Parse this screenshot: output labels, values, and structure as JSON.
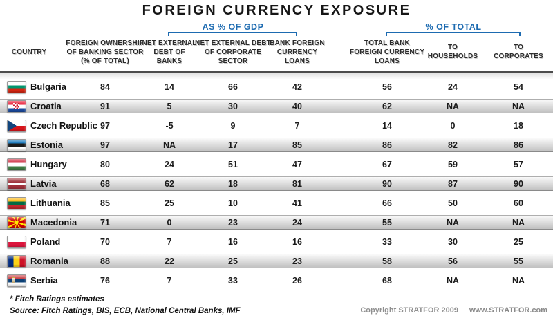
{
  "chart_data": {
    "type": "table",
    "title": "FOREIGN CURRENCY EXPOSURE",
    "group_headers": [
      {
        "label": "AS % OF GDP",
        "spans_columns": [
          "NET EXTERNAL DEBT OF BANKS",
          "NET EXTERNAL DEBT OF CORPORATE SECTOR",
          "BANK FOREIGN CURRENCY LOANS"
        ]
      },
      {
        "label": "% OF TOTAL",
        "spans_columns": [
          "TOTAL BANK FOREIGN CURRENCY LOANS",
          "TO HOUSEHOLDS",
          "TO CORPORATES"
        ]
      }
    ],
    "columns": [
      {
        "label": "COUNTRY"
      },
      {
        "label": "FOREIGN OWNERSHIP\nOF BANKING SECTOR\n(% OF TOTAL)"
      },
      {
        "label": "NET EXTERNAL\nDEBT OF\nBANKS"
      },
      {
        "label": "NET EXTERNAL DEBT\nOF CORPORATE\nSECTOR"
      },
      {
        "label": "BANK FOREIGN\nCURRENCY\nLOANS"
      },
      {
        "label": "TOTAL BANK\nFOREIGN CURRENCY\nLOANS"
      },
      {
        "label": "TO\nHOUSEHOLDS"
      },
      {
        "label": "TO\nCORPORATES"
      }
    ],
    "rows": [
      {
        "country": "Bulgaria",
        "flag": "bulgaria",
        "values": [
          "84",
          "14",
          "66",
          "42",
          "56",
          "24",
          "54"
        ]
      },
      {
        "country": "Croatia",
        "flag": "croatia",
        "values": [
          "91",
          "5",
          "30",
          "40",
          "62",
          "NA",
          "NA"
        ]
      },
      {
        "country": "Czech Republic",
        "flag": "czech-republic",
        "values": [
          "97",
          "-5",
          "9",
          "7",
          "14",
          "0",
          "18"
        ]
      },
      {
        "country": "Estonia",
        "flag": "estonia",
        "values": [
          "97",
          "NA",
          "17",
          "85",
          "86",
          "82",
          "86"
        ]
      },
      {
        "country": "Hungary",
        "flag": "hungary",
        "values": [
          "80",
          "24",
          "51",
          "47",
          "67",
          "59",
          "57"
        ]
      },
      {
        "country": "Latvia",
        "flag": "latvia",
        "values": [
          "68",
          "62",
          "18",
          "81",
          "90",
          "87",
          "90"
        ]
      },
      {
        "country": "Lithuania",
        "flag": "lithuania",
        "values": [
          "85",
          "25",
          "10",
          "41",
          "66",
          "50",
          "60"
        ]
      },
      {
        "country": "Macedonia",
        "flag": "macedonia",
        "values": [
          "71",
          "0",
          "23",
          "24",
          "55",
          "NA",
          "NA"
        ]
      },
      {
        "country": "Poland",
        "flag": "poland",
        "values": [
          "70",
          "7",
          "16",
          "16",
          "33",
          "30",
          "25"
        ]
      },
      {
        "country": "Romania",
        "flag": "romania",
        "values": [
          "88",
          "22",
          "25",
          "23",
          "58",
          "56",
          "55"
        ]
      },
      {
        "country": "Serbia",
        "flag": "serbia",
        "values": [
          "76",
          "7",
          "33",
          "26",
          "68",
          "NA",
          "NA"
        ]
      }
    ]
  },
  "footnotes": [
    "* Fitch Ratings estimates",
    "Source: Fitch Ratings, BIS, ECB, National Central Banks, IMF"
  ],
  "footer": {
    "copyright": "Copyright STRATFOR 2009",
    "website": "www.STRATFOR.com"
  },
  "colors": {
    "accent_blue": "#1d6bb1",
    "header_rule": "#4c4c4c",
    "band_top": "#fafafa",
    "band_bottom": "#c0c0c0",
    "copyright_gray": "#8f8f8f"
  }
}
